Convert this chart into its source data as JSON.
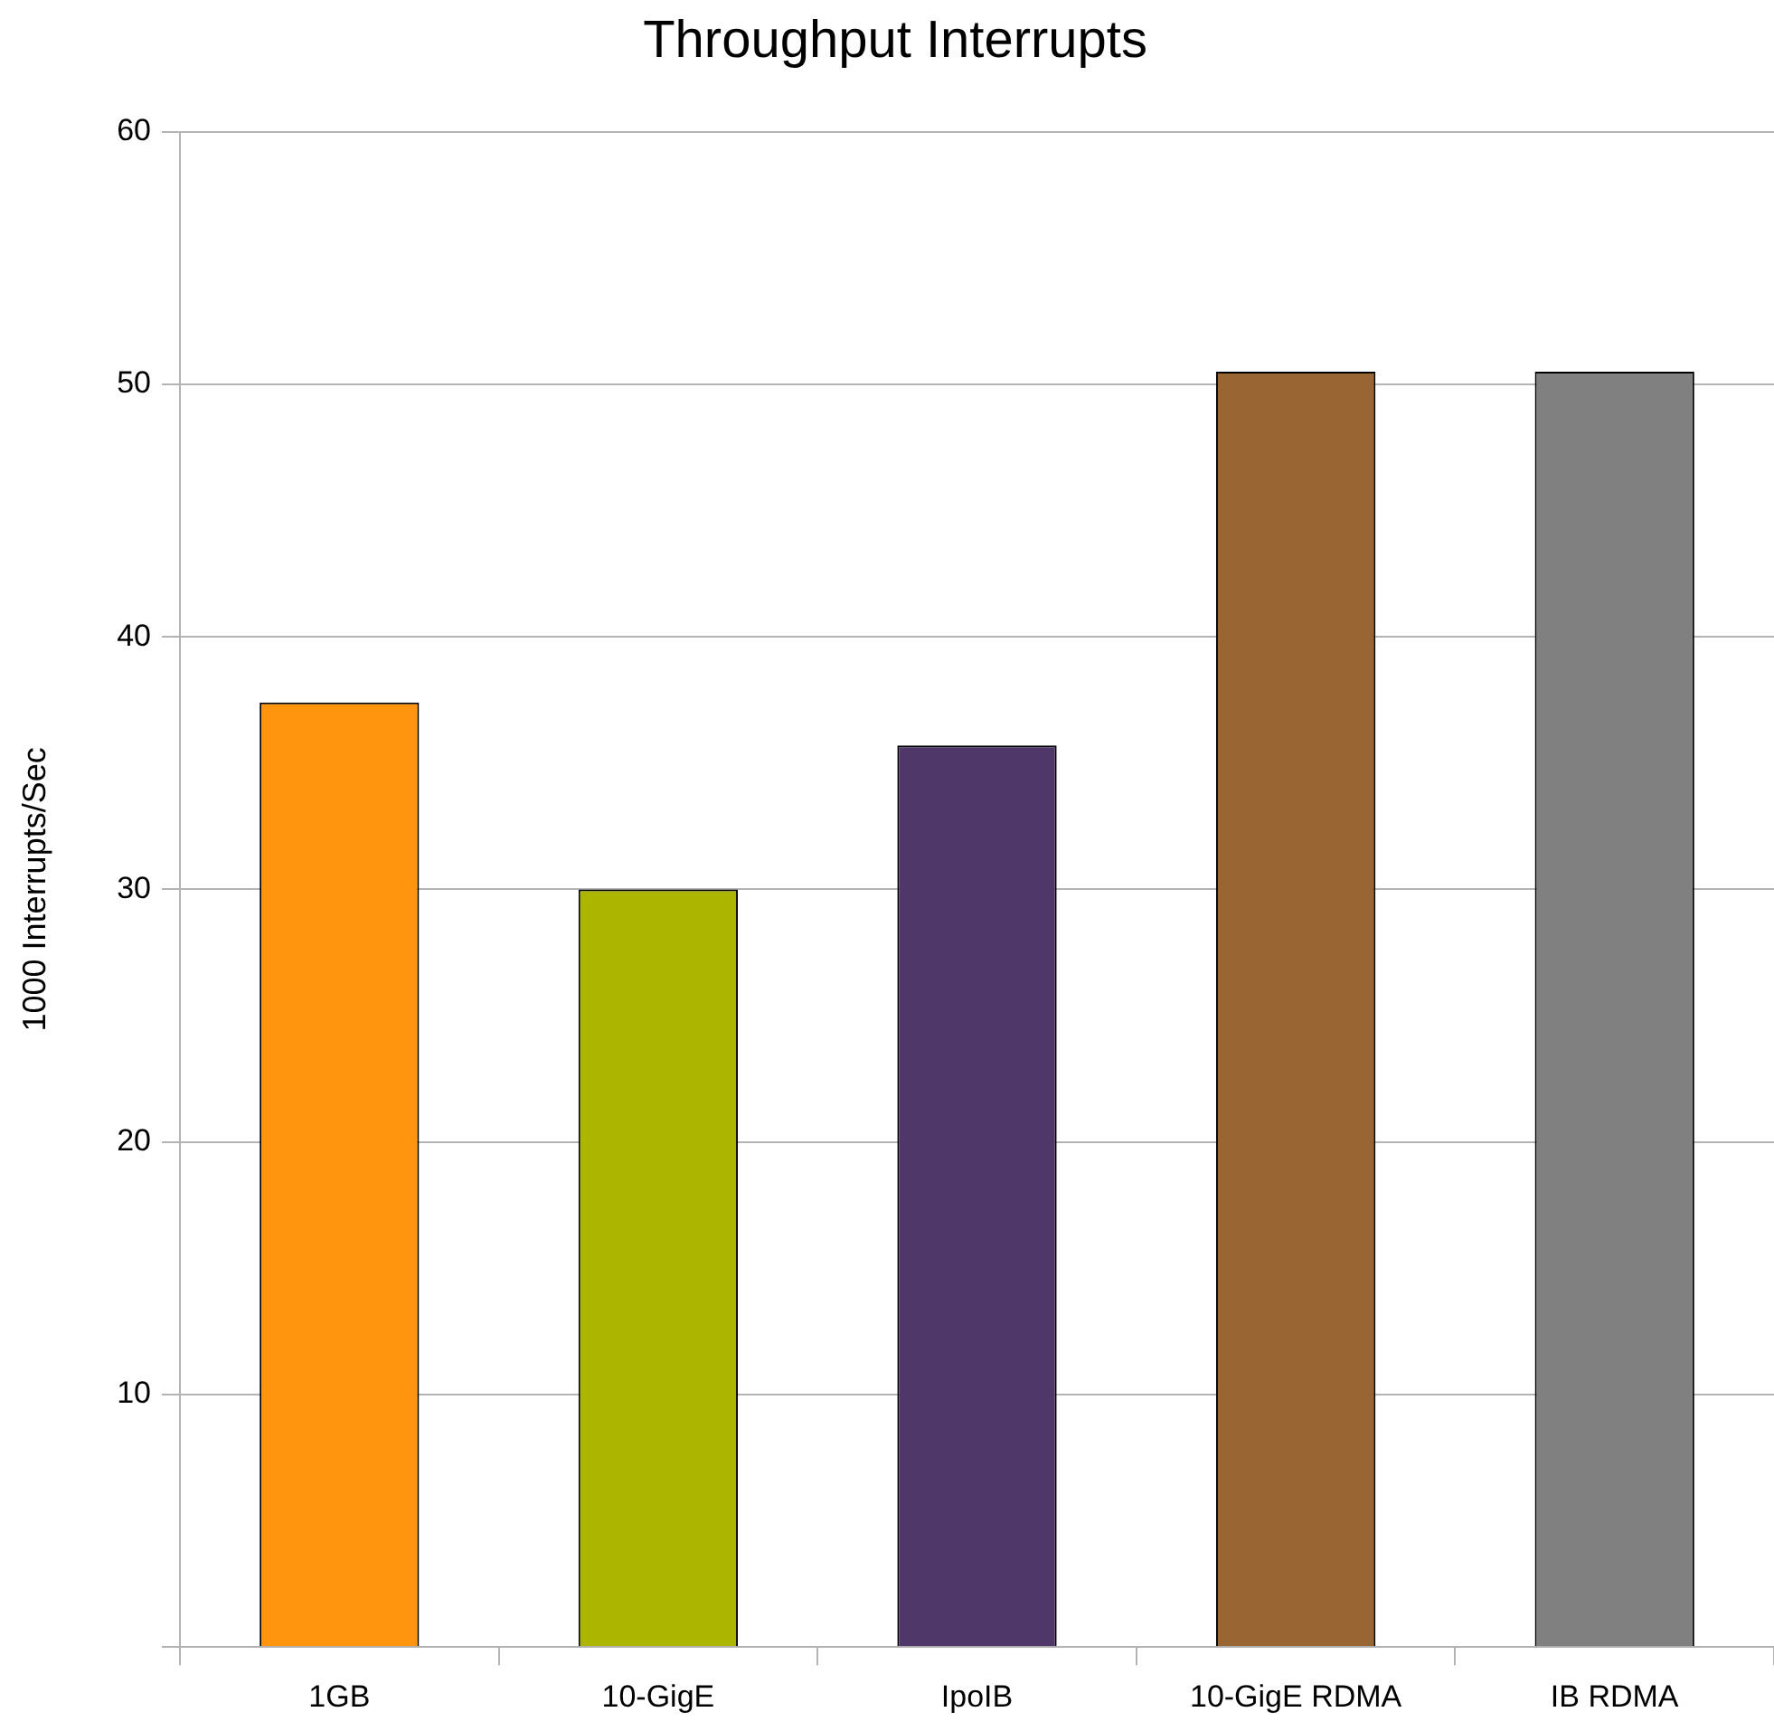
{
  "chart_data": {
    "type": "bar",
    "title": "Throughput Interrupts",
    "ylabel": "1000 Interrupts/Sec",
    "categories": [
      "1GB",
      "10-GigE",
      "IpoIB",
      "10-GigE RDMA",
      "IB RDMA"
    ],
    "values": [
      37.4,
      30,
      35.7,
      50.5,
      50.5
    ],
    "colors": [
      "#ff950e",
      "#acb500",
      "#4f3769",
      "#996633",
      "#808080"
    ],
    "ylim": [
      0,
      60
    ],
    "yticks": [
      {
        "value": 0,
        "label": null
      },
      10,
      20,
      30,
      40,
      50,
      60
    ],
    "grid": "y"
  }
}
